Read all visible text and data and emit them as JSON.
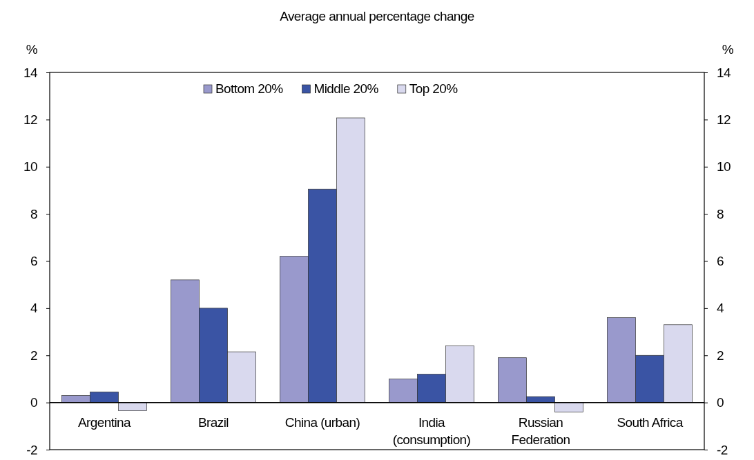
{
  "chart_data": {
    "type": "bar",
    "title": "Average annual percentage change",
    "ylabel": "%",
    "y2label": "%",
    "categories": [
      "Argentina",
      "Brazil",
      "China (urban)",
      "India (consumption)",
      "Russian Federation",
      "South Africa"
    ],
    "series": [
      {
        "name": "Bottom 20%",
        "color": "#9999cc",
        "values": [
          0.3,
          5.2,
          6.2,
          1.0,
          1.9,
          3.6
        ]
      },
      {
        "name": "Middle 20%",
        "color": "#3a54a4",
        "values": [
          0.45,
          4.0,
          9.05,
          1.2,
          0.25,
          2.0
        ]
      },
      {
        "name": "Top 20%",
        "color": "#d9d9ee",
        "values": [
          -0.35,
          2.15,
          12.07,
          2.4,
          -0.4,
          3.3
        ]
      }
    ],
    "ylim": [
      -2,
      14
    ],
    "yticks": [
      -2,
      0,
      2,
      4,
      6,
      8,
      10,
      12,
      14
    ],
    "y2lim": [
      -2,
      14
    ],
    "y2ticks": [
      -2,
      0,
      2,
      4,
      6,
      8,
      10,
      12,
      14
    ],
    "legend": "top"
  }
}
